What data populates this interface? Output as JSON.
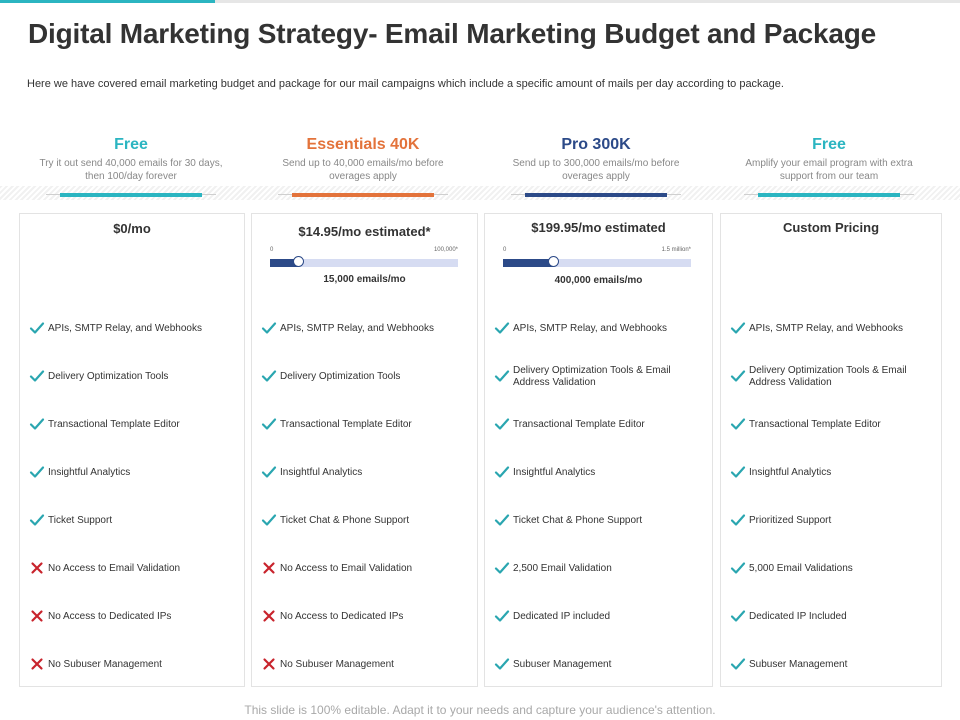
{
  "title": "Digital Marketing Strategy- Email Marketing Budget and Package",
  "subtitle": "Here we have covered email marketing budget and package for our mail campaigns which include a specific amount of mails per day according to package.",
  "footer": "This slide is 100% editable. Adapt it to your needs and capture your audience's attention.",
  "colors": {
    "teal": "#2bb5c1",
    "orange": "#e3733b",
    "navy": "#2c4a88",
    "check": "#2aa6b0",
    "cross": "#c8232c"
  },
  "plans": [
    {
      "name": "Free",
      "color": "#2bb5c1",
      "description": "Try it out send 40,000 emails  for 30 days, then 100/day forever",
      "price": "$0/mo",
      "features": [
        {
          "label": "APIs, SMTP  Relay, and Webhooks",
          "icon": "check-icon"
        },
        {
          "label": "Delivery Optimization Tools",
          "icon": "check-icon"
        },
        {
          "label": "Transactional Template Editor",
          "icon": "check-icon"
        },
        {
          "label": "Insightful Analytics",
          "icon": "check-icon"
        },
        {
          "label": "Ticket Support",
          "icon": "check-icon"
        },
        {
          "label": "No Access to Email Validation",
          "icon": "cross-icon"
        },
        {
          "label": "No Access to Dedicated IPs",
          "icon": "cross-icon"
        },
        {
          "label": "No Subuser Management",
          "icon": "cross-icon"
        }
      ]
    },
    {
      "name": "Essentials 40K",
      "color": "#e3733b",
      "description": "Send up to 40,000 emails/mo before overages apply",
      "price": "$14.95/mo estimated*",
      "slider": {
        "min_label": "0",
        "max_label": "100,000*",
        "value_fraction": 0.15,
        "value_label": "15,000 emails/mo"
      },
      "features": [
        {
          "label": "APIs, SMTP  Relay, and Webhooks",
          "icon": "check-icon"
        },
        {
          "label": "Delivery Optimization Tools",
          "icon": "check-icon"
        },
        {
          "label": "Transactional Template Editor",
          "icon": "check-icon"
        },
        {
          "label": "Insightful Analytics",
          "icon": "check-icon"
        },
        {
          "label": "Ticket Chat & Phone Support",
          "icon": "check-icon"
        },
        {
          "label": "No Access to Email Validation",
          "icon": "cross-icon"
        },
        {
          "label": "No Access to Dedicated IPs",
          "icon": "cross-icon"
        },
        {
          "label": "No Subuser Management",
          "icon": "cross-icon"
        }
      ]
    },
    {
      "name": "Pro 300K",
      "color": "#2c4a88",
      "description": "Send up to 300,000 emails/mo before overages apply",
      "price": "$199.95/mo estimated",
      "slider": {
        "min_label": "0",
        "max_label": "1.5 million*",
        "value_fraction": 0.2667,
        "value_label": "400,000 emails/mo"
      },
      "features": [
        {
          "label": "APIs, SMTP  Relay, and Webhooks",
          "icon": "check-icon"
        },
        {
          "label": "Delivery Optimization Tools & Email Address Validation",
          "icon": "check-icon"
        },
        {
          "label": "Transactional Template Editor",
          "icon": "check-icon"
        },
        {
          "label": "Insightful Analytics",
          "icon": "check-icon"
        },
        {
          "label": "Ticket Chat & Phone Support",
          "icon": "check-icon"
        },
        {
          "label": "2,500 Email  Validation",
          "icon": "check-icon"
        },
        {
          "label": "Dedicated IP  included",
          "icon": "check-icon"
        },
        {
          "label": "Subuser Management",
          "icon": "check-icon"
        }
      ]
    },
    {
      "name": "Free",
      "color": "#2bb5c1",
      "description": "Amplify your email program with extra support from our team",
      "price": "Custom Pricing",
      "features": [
        {
          "label": "APIs, SMTP  Relay, and Webhooks",
          "icon": "check-icon"
        },
        {
          "label": "Delivery Optimization Tools & Email Address Validation",
          "icon": "check-icon"
        },
        {
          "label": "Transactional Template Editor",
          "icon": "check-icon"
        },
        {
          "label": "Insightful Analytics",
          "icon": "check-icon"
        },
        {
          "label": "Prioritized Support",
          "icon": "check-icon"
        },
        {
          "label": "5,000 Email  Validations",
          "icon": "check-icon"
        },
        {
          "label": "Dedicated IP  Included",
          "icon": "check-icon"
        },
        {
          "label": "Subuser Management",
          "icon": "check-icon"
        }
      ]
    }
  ]
}
